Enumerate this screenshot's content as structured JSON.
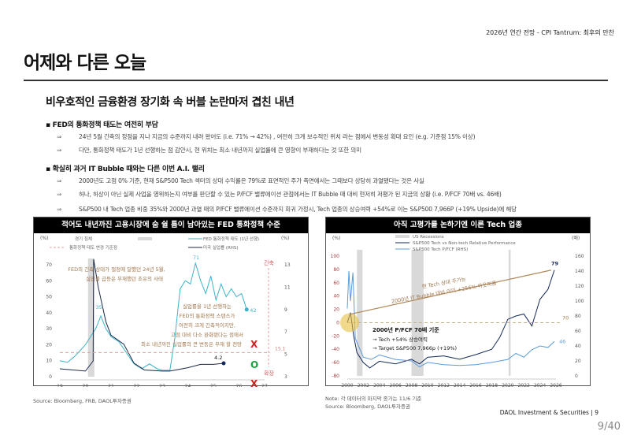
{
  "header": {
    "report": "2026년 연간 전망 - CPI Tantrum: 최후의 만찬",
    "title": "어제와 다른 오늘",
    "subtitle": "비우호적인 금융환경 장기화 속 버블 논란마저 겹친 내년"
  },
  "arrow": "⇒",
  "bullets": [
    {
      "text": "▪ FED의 통화정책 태도는 여전히 부담",
      "subs": [
        "24년 5월 긴축의 정점을 지나 지금의 수준까지 내려 왔어도 (i.e. 71% → 42%) , 여전히 크게 보수적인 위치 라는 점에서 변동성 확대 요인 (e.g. 기준점 15% 이상)",
        "다만, 통화정책 태도가 1년 선행하는 점 감안시, 현 위치는 최소 내년까지 실업률에 큰 영향이 부재하다는 것 또한 의미"
      ]
    },
    {
      "text": "▪ 확실히 과거 IT Bubble 때와는 다른 이번 A.I. 랠리",
      "subs": [
        "2000년도 고점 0% 기준, 현재 S&P500 Tech 섹터의 상대 수익률은 79%로 표면적인 주가 측면에서는 그때보다 상당히 과열됐다는 것은 사실",
        "허나, 허상이 아닌 실제 사업을 영위하는지 여부를 판단할 수 있는 P/FCF 밸류에이션 관점에서는 IT Bubble 때 대비 현저히 저평가 된 지금의 상황 (i.e. P/FCF 70배 vs. 46배)",
        "S&P500 내 Tech 업종 비중 35%와 2000년 과열 때의 P/FCF 밸류에이션 수준까지 회귀 가정시, Tech 업종의 상승여력 +54%로 이는 S&P500 7,966P (+19% Upside)에 해당"
      ]
    }
  ],
  "chart_data": [
    {
      "type": "line",
      "title": "적어도 내년까진 고용시장에 숨 쉴 틈이 남아있는 FED 통화정책 수준",
      "ylabel_left": "(%)",
      "ylabel_right": "(%)",
      "xlim": [
        19,
        27
      ],
      "ylim": [
        0,
        70
      ],
      "ylim_right": [
        3,
        13
      ],
      "xticks": [
        "19",
        "20",
        "21",
        "22",
        "23",
        "24",
        "25",
        "26",
        "27"
      ],
      "yticks": [
        "0",
        "10",
        "20",
        "30",
        "40",
        "50",
        "60",
        "70"
      ],
      "yticks_right": [
        "3",
        "5",
        "7",
        "9",
        "11",
        "13"
      ],
      "legend": [
        "경기 침체",
        "FED 통화정책 태도 (1년 선행)",
        "통화정책 태도 변경 기준점",
        "미국 실업률 (RHS)"
      ],
      "recessions": [
        [
          20.1,
          20.35
        ]
      ],
      "threshold": 15.1,
      "series": [
        {
          "name": "FED 통화정책 태도 (1년 선행)",
          "color": "#3cb4c8",
          "axis": "left",
          "points": [
            [
              19,
              10
            ],
            [
              19.3,
              9
            ],
            [
              19.6,
              13
            ],
            [
              20,
              20
            ],
            [
              20.2,
              25
            ],
            [
              20.4,
              30
            ],
            [
              20.6,
              38
            ],
            [
              20.8,
              30
            ],
            [
              21,
              25
            ],
            [
              21.3,
              22
            ],
            [
              21.6,
              15
            ],
            [
              21.9,
              8
            ],
            [
              22.2,
              5
            ],
            [
              22.5,
              8
            ],
            [
              22.8,
              5
            ],
            [
              23,
              4
            ],
            [
              23.3,
              4
            ],
            [
              23.5,
              25
            ],
            [
              23.7,
              55
            ],
            [
              23.9,
              60
            ],
            [
              24.1,
              58
            ],
            [
              24.3,
              71
            ],
            [
              24.5,
              60
            ],
            [
              24.7,
              52
            ],
            [
              24.9,
              63
            ],
            [
              25.1,
              48
            ],
            [
              25.3,
              58
            ],
            [
              25.5,
              50
            ],
            [
              25.7,
              55
            ],
            [
              25.9,
              50
            ],
            [
              26.1,
              52
            ],
            [
              26.3,
              42
            ]
          ]
        },
        {
          "name": "미국 실업률 (RHS)",
          "color": "#1a2a4a",
          "axis": "right",
          "points": [
            [
              19,
              3.7
            ],
            [
              20,
              3.5
            ],
            [
              20.3,
              4.4
            ],
            [
              20.32,
              13.5
            ],
            [
              20.5,
              11
            ],
            [
              20.8,
              7.9
            ],
            [
              21,
              6.7
            ],
            [
              21.5,
              5.9
            ],
            [
              21.9,
              4.2
            ],
            [
              22.3,
              3.6
            ],
            [
              23,
              3.5
            ],
            [
              23.3,
              3.5
            ],
            [
              24,
              3.8
            ],
            [
              24.5,
              4.1
            ],
            [
              25,
              4.1
            ],
            [
              25.4,
              4.2
            ]
          ]
        }
      ],
      "annotations": [
        "FED의 긴축 상태가 절정에 달했던 24년 5월,",
        "실업률 급등은 부재했던 초유의 사태",
        "실업률을 1년 선행하는",
        "FED의 통화정책 스탠스가",
        "여전히 크게 긴축적이지만,",
        "고점 대비 다소 완화됐다는 점에서",
        "최소 내년까진 실업률의 큰 변동은 부재 할 전망",
        "71",
        "35",
        "42",
        "4.2",
        "15.1",
        "긴축",
        "확장",
        "X",
        "O",
        "X"
      ],
      "source": "Source: Bloomberg, FRB, DAOL투자증권"
    },
    {
      "type": "line",
      "title": "아직 고평가를 논하기엔 이른 Tech 업종",
      "ylabel_left": "(%)",
      "ylabel_right": "(배)",
      "xlim": [
        2000,
        2026
      ],
      "ylim": [
        -80,
        100
      ],
      "ylim_right": [
        0,
        160
      ],
      "xticks": [
        "2000",
        "2002",
        "2004",
        "2006",
        "2008",
        "2010",
        "2012",
        "2014",
        "2016",
        "2018",
        "2020",
        "2022",
        "2024",
        "2026"
      ],
      "yticks": [
        "-80",
        "-60",
        "-40",
        "-20",
        "0",
        "20",
        "40",
        "60",
        "80",
        "100"
      ],
      "yticks_right": [
        "0",
        "20",
        "40",
        "60",
        "80",
        "100",
        "120",
        "140",
        "160"
      ],
      "legend": [
        "US Recessions",
        "S&P500 Tech vs Non-tech Relative Performance",
        "S&P500 Tech P/FCF (RHS)"
      ],
      "recessions": [
        [
          2001.2,
          2001.9
        ],
        [
          2008,
          2009.5
        ],
        [
          2020.1,
          2020.35
        ]
      ],
      "series": [
        {
          "name": "S&P500 Tech vs Non-tech Relative Performance",
          "color": "#13285a",
          "axis": "left",
          "points": [
            [
              2000,
              0
            ],
            [
              2000.4,
              15
            ],
            [
              2000.8,
              -20
            ],
            [
              2001.2,
              -45
            ],
            [
              2002,
              -60
            ],
            [
              2002.8,
              -68
            ],
            [
              2004,
              -58
            ],
            [
              2006,
              -62
            ],
            [
              2008,
              -55
            ],
            [
              2009,
              -62
            ],
            [
              2010,
              -52
            ],
            [
              2012,
              -50
            ],
            [
              2014,
              -55
            ],
            [
              2016,
              -48
            ],
            [
              2018,
              -40
            ],
            [
              2019,
              -22
            ],
            [
              2020,
              5
            ],
            [
              2021,
              10
            ],
            [
              2022,
              13
            ],
            [
              2023,
              -5
            ],
            [
              2023.5,
              15
            ],
            [
              2024,
              35
            ],
            [
              2025,
              50
            ],
            [
              2025.8,
              79
            ]
          ]
        },
        {
          "name": "S&P500 Tech P/FCF (RHS)",
          "color": "#5b9bd5",
          "axis": "right",
          "points": [
            [
              2000,
              90
            ],
            [
              2000.2,
              140
            ],
            [
              2000.4,
              100
            ],
            [
              2000.7,
              138
            ],
            [
              2001,
              50
            ],
            [
              2002,
              25
            ],
            [
              2003,
              22
            ],
            [
              2004,
              28
            ],
            [
              2006,
              22
            ],
            [
              2008,
              20
            ],
            [
              2009,
              12
            ],
            [
              2010,
              18
            ],
            [
              2012,
              15
            ],
            [
              2014,
              14
            ],
            [
              2016,
              15
            ],
            [
              2018,
              18
            ],
            [
              2020,
              22
            ],
            [
              2021,
              30
            ],
            [
              2022,
              25
            ],
            [
              2023,
              35
            ],
            [
              2024,
              40
            ],
            [
              2025,
              38
            ],
            [
              2025.8,
              46
            ]
          ]
        }
      ],
      "annotations": [
        "현 Tech 상대 주가는",
        "2000년 IT Bubble 대비 이미 +256% 아웃퍼폼",
        "2000년 P/FCF 70배 기준",
        "→ Tech +54% 상승여력",
        "→ Target S&P500 7,966p (+19%)",
        "79",
        "70",
        "46"
      ],
      "note": "Note: 각 데이터의 마지막 종가는 11/6 기준",
      "source": "Source: Bloomberg, DAOL투자증권"
    }
  ],
  "footer": {
    "company": "DAOL Investment & Securities  |  9",
    "page": "9/40"
  }
}
